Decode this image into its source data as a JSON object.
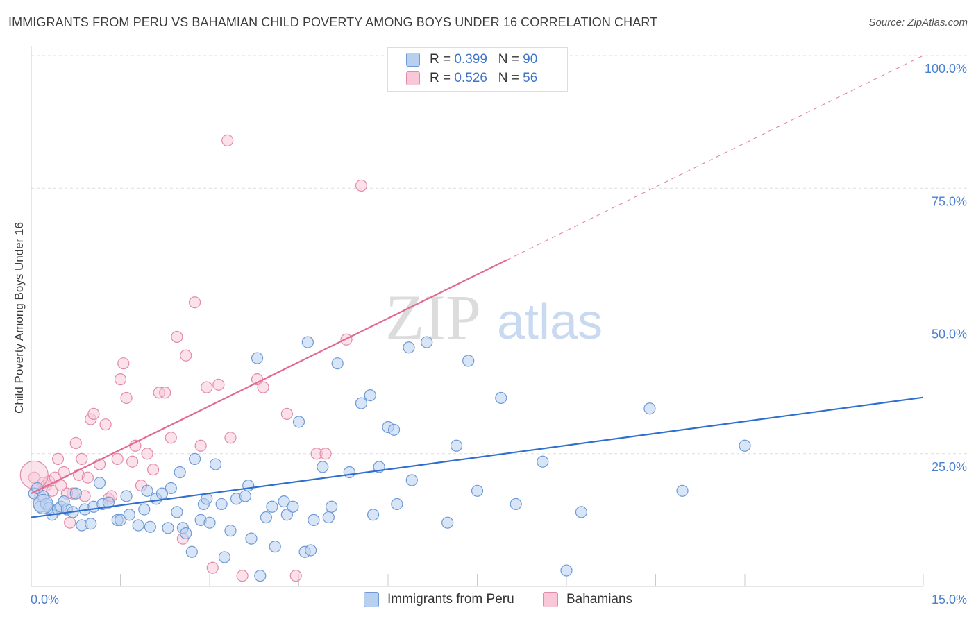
{
  "header": {
    "title": "IMMIGRANTS FROM PERU VS BAHAMIAN CHILD POVERTY AMONG BOYS UNDER 16 CORRELATION CHART",
    "source": "Source: ZipAtlas.com"
  },
  "watermark": {
    "zip": "ZIP",
    "atlas": "atlas"
  },
  "legend_top": {
    "rows": [
      {
        "r_label": "R = ",
        "r_value": "0.399",
        "n_label": "N = ",
        "n_value": "90"
      },
      {
        "r_label": "R = ",
        "r_value": "0.526",
        "n_label": "N = ",
        "n_value": "56"
      }
    ]
  },
  "legend_bottom": {
    "series1": "Immigrants from Peru",
    "series2": "Bahamians"
  },
  "colors": {
    "blue_fill": "#b8d0f0",
    "blue_stroke": "#6d9ad6",
    "blue_line": "#2f6fd0",
    "pink_fill": "#f8c8d8",
    "pink_stroke": "#e38aa8",
    "pink_line": "#e06a93",
    "tick": "#4a7fd0",
    "grid": "#dddddd"
  },
  "chart_data": {
    "type": "scatter",
    "title": "IMMIGRANTS FROM PERU VS BAHAMIAN CHILD POVERTY AMONG BOYS UNDER 16 CORRELATION CHART",
    "xlabel": "",
    "ylabel": "Child Poverty Among Boys Under 16",
    "xlim": [
      0,
      15
    ],
    "ylim": [
      0,
      100
    ],
    "x_tick_labels": [
      "0.0%",
      "15.0%"
    ],
    "y_ticks": [
      25,
      50,
      75,
      100
    ],
    "y_tick_labels": [
      "25.0%",
      "50.0%",
      "75.0%",
      "100.0%"
    ],
    "grid": true,
    "legend_position": "top-center",
    "series": [
      {
        "name": "Immigrants from Peru",
        "r": 0.399,
        "n": 90,
        "trend": {
          "x0": 0,
          "y0": 13.0,
          "x1": 15,
          "y1": 35.6,
          "dashed_from": null
        },
        "points": [
          [
            0.05,
            17.5
          ],
          [
            0.1,
            18.5
          ],
          [
            0.15,
            15.0
          ],
          [
            0.2,
            17.0
          ],
          [
            0.25,
            15.5
          ],
          [
            0.3,
            14.8
          ],
          [
            0.35,
            13.5
          ],
          [
            0.45,
            14.5
          ],
          [
            0.5,
            15.0
          ],
          [
            0.6,
            14.5
          ],
          [
            0.7,
            14.0
          ],
          [
            0.75,
            17.5
          ],
          [
            0.85,
            11.5
          ],
          [
            0.9,
            14.5
          ],
          [
            1.0,
            11.8
          ],
          [
            1.05,
            15.0
          ],
          [
            1.15,
            19.5
          ],
          [
            1.2,
            15.5
          ],
          [
            1.3,
            15.8
          ],
          [
            1.45,
            12.5
          ],
          [
            1.5,
            12.5
          ],
          [
            1.6,
            17.0
          ],
          [
            1.65,
            13.5
          ],
          [
            1.8,
            11.5
          ],
          [
            1.9,
            14.5
          ],
          [
            1.95,
            18.0
          ],
          [
            2.0,
            11.2
          ],
          [
            2.1,
            16.5
          ],
          [
            2.2,
            17.5
          ],
          [
            2.3,
            11.0
          ],
          [
            2.35,
            18.5
          ],
          [
            2.45,
            14.0
          ],
          [
            2.5,
            21.5
          ],
          [
            2.55,
            11.0
          ],
          [
            2.6,
            10.0
          ],
          [
            2.7,
            6.5
          ],
          [
            2.75,
            24.0
          ],
          [
            2.85,
            12.5
          ],
          [
            2.9,
            15.5
          ],
          [
            2.95,
            16.5
          ],
          [
            3.0,
            12.0
          ],
          [
            3.1,
            23.0
          ],
          [
            3.2,
            15.5
          ],
          [
            3.25,
            5.5
          ],
          [
            3.35,
            10.5
          ],
          [
            3.45,
            16.5
          ],
          [
            3.6,
            17.0
          ],
          [
            3.65,
            19.0
          ],
          [
            3.7,
            9.0
          ],
          [
            3.8,
            43.0
          ],
          [
            3.85,
            2.0
          ],
          [
            3.95,
            13.0
          ],
          [
            4.05,
            15.0
          ],
          [
            4.1,
            7.5
          ],
          [
            4.25,
            16.0
          ],
          [
            4.3,
            13.5
          ],
          [
            4.4,
            15.0
          ],
          [
            4.5,
            31.0
          ],
          [
            4.6,
            6.5
          ],
          [
            4.65,
            46.0
          ],
          [
            4.7,
            6.8
          ],
          [
            4.75,
            12.5
          ],
          [
            4.9,
            22.5
          ],
          [
            5.0,
            13.0
          ],
          [
            5.05,
            15.0
          ],
          [
            5.15,
            42.0
          ],
          [
            5.35,
            21.5
          ],
          [
            5.55,
            34.5
          ],
          [
            5.7,
            36.0
          ],
          [
            5.75,
            13.5
          ],
          [
            5.85,
            22.5
          ],
          [
            6.0,
            30.0
          ],
          [
            6.1,
            29.5
          ],
          [
            6.15,
            15.5
          ],
          [
            6.35,
            45.0
          ],
          [
            6.4,
            20.0
          ],
          [
            6.65,
            46.0
          ],
          [
            7.0,
            12.0
          ],
          [
            7.15,
            26.5
          ],
          [
            7.35,
            42.5
          ],
          [
            7.5,
            18.0
          ],
          [
            7.9,
            35.5
          ],
          [
            8.15,
            15.5
          ],
          [
            8.6,
            23.5
          ],
          [
            9.0,
            3.0
          ],
          [
            9.25,
            14.0
          ],
          [
            10.4,
            33.5
          ],
          [
            10.95,
            18.0
          ],
          [
            12.0,
            26.5
          ],
          [
            0.55,
            16.0
          ]
        ]
      },
      {
        "name": "Bahamians",
        "r": 0.526,
        "n": 56,
        "trend": {
          "x0": 0,
          "y0": 17.5,
          "x1": 15,
          "y1": 100,
          "dashed_from": 8.0
        },
        "points": [
          [
            0.05,
            20.5
          ],
          [
            0.1,
            18.5
          ],
          [
            0.2,
            19.5
          ],
          [
            0.25,
            19.0
          ],
          [
            0.3,
            19.8
          ],
          [
            0.35,
            18.0
          ],
          [
            0.4,
            20.5
          ],
          [
            0.45,
            24.0
          ],
          [
            0.55,
            21.5
          ],
          [
            0.65,
            12.0
          ],
          [
            0.7,
            17.5
          ],
          [
            0.75,
            27.0
          ],
          [
            0.8,
            21.0
          ],
          [
            0.85,
            24.0
          ],
          [
            0.9,
            17.0
          ],
          [
            0.95,
            20.5
          ],
          [
            1.0,
            31.5
          ],
          [
            1.05,
            32.5
          ],
          [
            1.15,
            23.0
          ],
          [
            1.25,
            30.5
          ],
          [
            1.3,
            16.5
          ],
          [
            1.35,
            17.0
          ],
          [
            1.45,
            24.0
          ],
          [
            1.5,
            39.0
          ],
          [
            1.55,
            42.0
          ],
          [
            1.6,
            35.5
          ],
          [
            1.7,
            23.5
          ],
          [
            1.75,
            26.5
          ],
          [
            1.85,
            19.0
          ],
          [
            1.95,
            25.0
          ],
          [
            2.05,
            22.0
          ],
          [
            2.15,
            36.5
          ],
          [
            2.25,
            36.5
          ],
          [
            2.35,
            28.0
          ],
          [
            2.45,
            47.0
          ],
          [
            2.55,
            9.0
          ],
          [
            2.6,
            43.5
          ],
          [
            2.75,
            53.5
          ],
          [
            2.85,
            26.5
          ],
          [
            2.95,
            37.5
          ],
          [
            3.05,
            3.5
          ],
          [
            3.15,
            38.0
          ],
          [
            3.3,
            84.0
          ],
          [
            3.35,
            28.0
          ],
          [
            3.55,
            2.0
          ],
          [
            3.8,
            39.0
          ],
          [
            3.9,
            37.5
          ],
          [
            4.3,
            32.5
          ],
          [
            4.45,
            2.0
          ],
          [
            4.8,
            25.0
          ],
          [
            4.95,
            25.0
          ],
          [
            5.3,
            46.5
          ],
          [
            5.55,
            75.5
          ],
          [
            0.6,
            17.5
          ],
          [
            0.15,
            17.0
          ],
          [
            0.5,
            19.0
          ]
        ]
      }
    ]
  }
}
